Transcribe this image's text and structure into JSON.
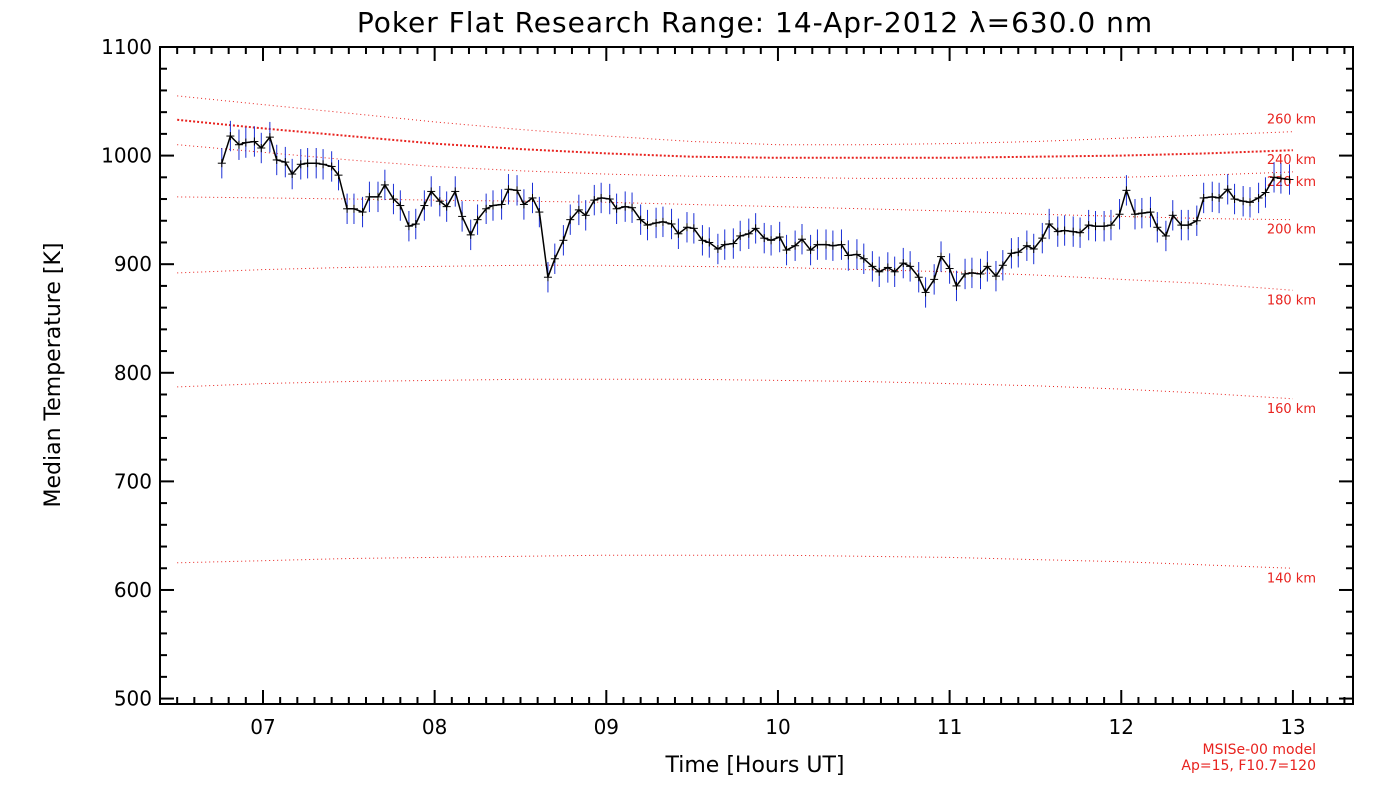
{
  "chart_data": {
    "type": "line",
    "title": "Poker Flat Research Range: 14-Apr-2012 λ=630.0 nm",
    "xlabel": "Time [Hours UT]",
    "ylabel": "Median Temperature [K]",
    "xlim": [
      6.4,
      13.35
    ],
    "ylim": [
      495,
      1100
    ],
    "x_ticks": [
      7,
      8,
      9,
      10,
      11,
      12,
      13
    ],
    "x_tick_labels": [
      "07",
      "08",
      "09",
      "10",
      "11",
      "12",
      "13"
    ],
    "y_ticks": [
      500,
      600,
      700,
      800,
      900,
      1000,
      1100
    ],
    "y_tick_labels": [
      "500",
      "600",
      "700",
      "800",
      "900",
      "1000",
      "1100"
    ],
    "grid": false,
    "colors": {
      "data_line": "#000000",
      "error_bars": "#1a2fd6",
      "model_lines": "#e8231f",
      "model_text": "#e8231f"
    },
    "series": [
      {
        "error": 14,
        "x": [
          6.76,
          6.81,
          6.86,
          6.9,
          6.95,
          6.99,
          7.04,
          7.08,
          7.13,
          7.17,
          7.22,
          7.26,
          7.31,
          7.35,
          7.4,
          7.44,
          7.49,
          7.53,
          7.58,
          7.62,
          7.67,
          7.71,
          7.76,
          7.8,
          7.85,
          7.89,
          7.94,
          7.98,
          8.03,
          8.07,
          8.12,
          8.16,
          8.21,
          8.25,
          8.3,
          8.34,
          8.39,
          8.43,
          8.48,
          8.52,
          8.57,
          8.61,
          8.66,
          8.7,
          8.75,
          8.79,
          8.84,
          8.88,
          8.93,
          8.97,
          9.02,
          9.06,
          9.11,
          9.15,
          9.2,
          9.24,
          9.29,
          9.33,
          9.38,
          9.42,
          9.47,
          9.51,
          9.56,
          9.6,
          9.65,
          9.69,
          9.74,
          9.78,
          9.83,
          9.87,
          9.92,
          9.96,
          10.01,
          10.05,
          10.1,
          10.14,
          10.19,
          10.23,
          10.28,
          10.32,
          10.37,
          10.41,
          10.46,
          10.5,
          10.55,
          10.59,
          10.64,
          10.68,
          10.73,
          10.77,
          10.82,
          10.86,
          10.91,
          10.95,
          11.0,
          11.04,
          11.09,
          11.13,
          11.18,
          11.22,
          11.27,
          11.31,
          11.36,
          11.4,
          11.45,
          11.49,
          11.54,
          11.58,
          11.63,
          11.67,
          11.72,
          11.76,
          11.81,
          11.85,
          11.9,
          11.94,
          11.99,
          12.03,
          12.08,
          12.12,
          12.17,
          12.21,
          12.26,
          12.3,
          12.35,
          12.39,
          12.44,
          12.48,
          12.53,
          12.57,
          12.62,
          12.66,
          12.71,
          12.75,
          12.8,
          12.84,
          12.89,
          12.93,
          12.98
        ],
        "y": [
          993,
          1018,
          1010,
          1012,
          1013,
          1007,
          1017,
          996,
          994,
          983,
          992,
          993,
          993,
          992,
          990,
          982,
          951,
          951,
          948,
          962,
          962,
          973,
          960,
          954,
          935,
          937,
          954,
          967,
          958,
          953,
          967,
          944,
          927,
          941,
          951,
          954,
          955,
          969,
          968,
          955,
          961,
          948,
          888,
          905,
          922,
          941,
          950,
          945,
          959,
          961,
          960,
          951,
          953,
          952,
          941,
          936,
          938,
          939,
          937,
          928,
          934,
          933,
          922,
          920,
          914,
          918,
          919,
          926,
          928,
          933,
          924,
          922,
          925,
          913,
          917,
          923,
          913,
          918,
          918,
          917,
          918,
          908,
          909,
          905,
          898,
          893,
          897,
          893,
          901,
          898,
          888,
          874,
          886,
          907,
          896,
          880,
          891,
          892,
          891,
          898,
          889,
          899,
          910,
          911,
          917,
          914,
          924,
          937,
          930,
          931,
          930,
          929,
          936,
          935,
          935,
          936,
          946,
          968,
          946,
          947,
          948,
          934,
          926,
          945,
          936,
          936,
          940,
          961,
          962,
          961,
          969,
          960,
          958,
          957,
          961,
          966,
          980,
          979,
          978
        ]
      }
    ],
    "model_curves": [
      {
        "label": "260 km",
        "x": [
          6.5,
          7.0,
          7.5,
          8.0,
          8.5,
          9.0,
          9.5,
          10.0,
          10.5,
          11.0,
          11.5,
          12.0,
          12.5,
          13.0
        ],
        "y": [
          1055,
          1047,
          1039,
          1031,
          1024,
          1018,
          1013,
          1010,
          1010,
          1011,
          1013,
          1016,
          1019,
          1022
        ]
      },
      {
        "label": "240 km",
        "x": [
          6.5,
          7.0,
          7.5,
          8.0,
          8.5,
          9.0,
          9.5,
          10.0,
          10.5,
          11.0,
          11.5,
          12.0,
          12.5,
          13.0
        ],
        "y": [
          1033,
          1025,
          1018,
          1011,
          1006,
          1002,
          999,
          998,
          998,
          998,
          999,
          1000,
          1002,
          1005
        ]
      },
      {
        "label": "220 km",
        "x": [
          6.5,
          7.0,
          7.5,
          8.0,
          8.5,
          9.0,
          9.5,
          10.0,
          10.5,
          11.0,
          11.5,
          12.0,
          12.5,
          13.0
        ],
        "y": [
          1010,
          1003,
          996,
          990,
          986,
          983,
          981,
          980,
          979,
          979,
          979,
          980,
          982,
          985
        ]
      },
      {
        "label": "200 km",
        "x": [
          6.5,
          7.0,
          7.5,
          8.0,
          8.5,
          9.0,
          9.5,
          10.0,
          10.5,
          11.0,
          11.5,
          12.0,
          12.5,
          13.0
        ],
        "y": [
          962,
          961,
          960,
          959,
          958,
          957,
          955,
          953,
          951,
          949,
          946,
          944,
          942,
          941
        ]
      },
      {
        "label": "180 km",
        "x": [
          6.5,
          7.0,
          7.5,
          8.0,
          8.5,
          9.0,
          9.5,
          10.0,
          10.5,
          11.0,
          11.5,
          12.0,
          12.5,
          13.0
        ],
        "y": [
          892,
          895,
          897,
          898,
          899,
          899,
          898,
          897,
          895,
          893,
          890,
          886,
          882,
          876
        ]
      },
      {
        "label": "160 km",
        "x": [
          6.5,
          7.0,
          7.5,
          8.0,
          8.5,
          9.0,
          9.5,
          10.0,
          10.5,
          11.0,
          11.5,
          12.0,
          12.5,
          13.0
        ],
        "y": [
          787,
          790,
          792,
          793,
          794,
          794,
          794,
          793,
          792,
          790,
          788,
          785,
          781,
          776
        ]
      },
      {
        "label": "140 km",
        "x": [
          6.5,
          7.0,
          7.5,
          8.0,
          8.5,
          9.0,
          9.5,
          10.0,
          10.5,
          11.0,
          11.5,
          12.0,
          12.5,
          13.0
        ],
        "y": [
          625,
          627,
          629,
          630,
          631,
          632,
          632,
          632,
          631,
          630,
          628,
          626,
          623,
          620
        ]
      }
    ],
    "model_annotation": {
      "line1": "MSISe-00 model",
      "line2": "Ap=15, F10.7=120"
    }
  }
}
